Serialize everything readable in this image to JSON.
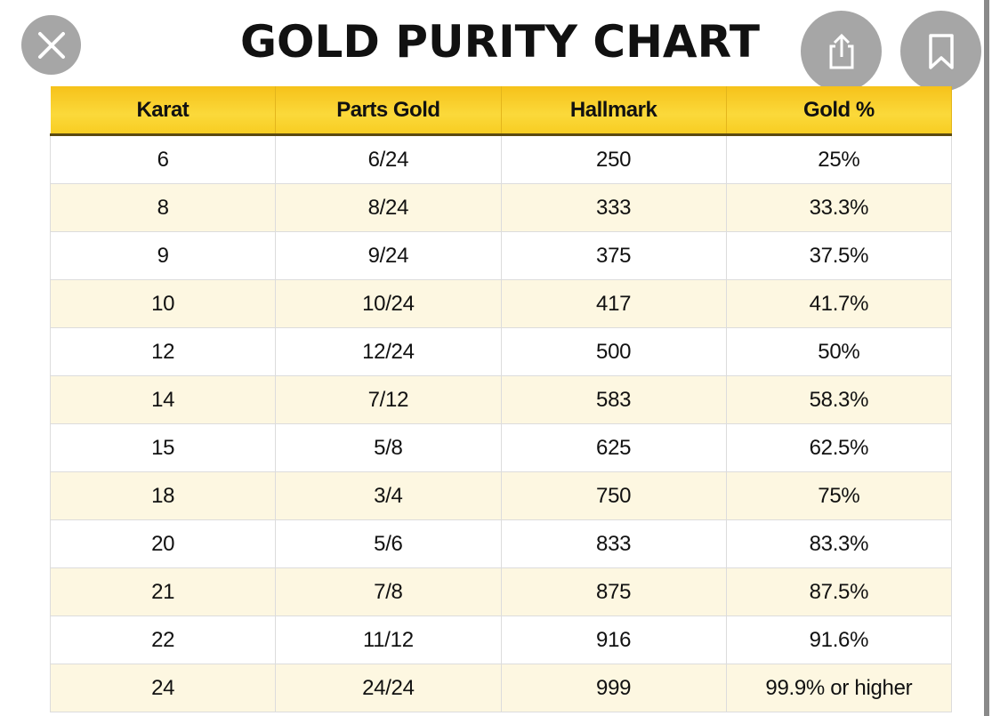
{
  "title": "GOLD PURITY CHART",
  "buttons": {
    "close_icon": "close-x-icon",
    "share_icon": "share-icon",
    "bookmark_icon": "bookmark-icon"
  },
  "colors": {
    "header": "#f9cf2a",
    "alt_row": "#fdf7e1"
  },
  "table": {
    "headers": [
      "Karat",
      "Parts Gold",
      "Hallmark",
      "Gold %"
    ],
    "rows": [
      [
        "6",
        "6/24",
        "250",
        "25%"
      ],
      [
        "8",
        "8/24",
        "333",
        "33.3%"
      ],
      [
        "9",
        "9/24",
        "375",
        "37.5%"
      ],
      [
        "10",
        "10/24",
        "417",
        "41.7%"
      ],
      [
        "12",
        "12/24",
        "500",
        "50%"
      ],
      [
        "14",
        "7/12",
        "583",
        "58.3%"
      ],
      [
        "15",
        "5/8",
        "625",
        "62.5%"
      ],
      [
        "18",
        "3/4",
        "750",
        "75%"
      ],
      [
        "20",
        "5/6",
        "833",
        "83.3%"
      ],
      [
        "21",
        "7/8",
        "875",
        "87.5%"
      ],
      [
        "22",
        "11/12",
        "916",
        "91.6%"
      ],
      [
        "24",
        "24/24",
        "999",
        "99.9% or higher"
      ]
    ]
  }
}
